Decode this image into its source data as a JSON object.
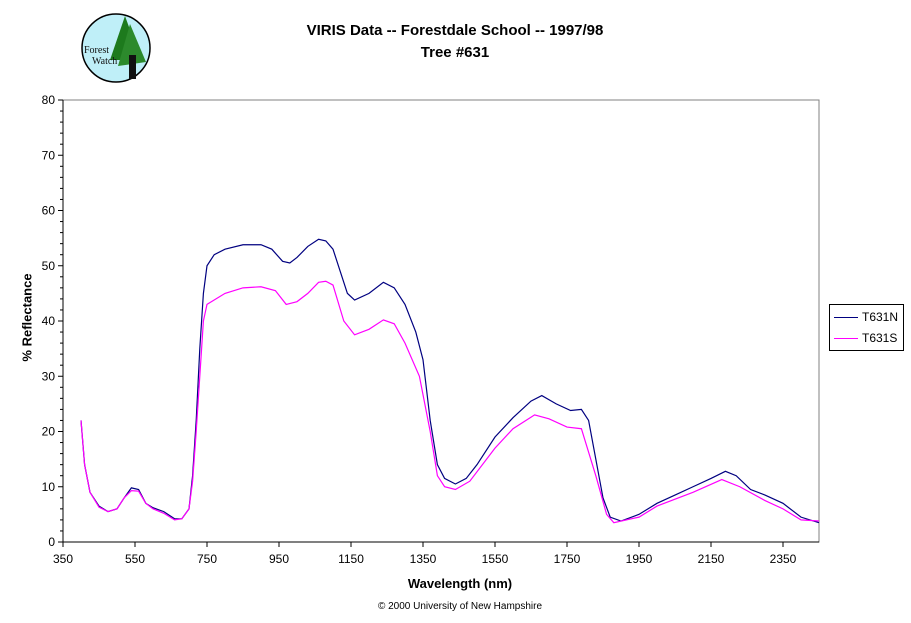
{
  "logo": {
    "text": "Forest Watch"
  },
  "chart_data": {
    "type": "line",
    "title": "VIRIS Data -- Forestdale School -- 1997/98",
    "subtitle": "Tree #631",
    "xlabel": "Wavelength (nm)",
    "ylabel": "% Reflectance",
    "xlim": [
      350,
      2450
    ],
    "ylim": [
      0,
      80
    ],
    "xticks": [
      350,
      550,
      750,
      950,
      1150,
      1350,
      1550,
      1750,
      1950,
      2150,
      2350
    ],
    "yticks": [
      0,
      10,
      20,
      30,
      40,
      50,
      60,
      70,
      80
    ],
    "grid": false,
    "legend_position": "right",
    "footer": "© 2000 University of New Hampshire",
    "series": [
      {
        "name": "T631N",
        "color": "#000080",
        "points": [
          [
            400,
            22
          ],
          [
            410,
            14
          ],
          [
            425,
            9
          ],
          [
            450,
            6.5
          ],
          [
            475,
            5.5
          ],
          [
            500,
            6
          ],
          [
            520,
            8
          ],
          [
            540,
            9.8
          ],
          [
            560,
            9.5
          ],
          [
            580,
            7
          ],
          [
            600,
            6.2
          ],
          [
            630,
            5.5
          ],
          [
            660,
            4.2
          ],
          [
            680,
            4.2
          ],
          [
            700,
            6
          ],
          [
            710,
            12
          ],
          [
            720,
            22
          ],
          [
            730,
            35
          ],
          [
            740,
            45
          ],
          [
            750,
            50
          ],
          [
            770,
            52
          ],
          [
            800,
            53
          ],
          [
            850,
            53.8
          ],
          [
            900,
            53.8
          ],
          [
            930,
            53
          ],
          [
            960,
            50.8
          ],
          [
            980,
            50.5
          ],
          [
            1000,
            51.5
          ],
          [
            1030,
            53.5
          ],
          [
            1060,
            54.8
          ],
          [
            1080,
            54.5
          ],
          [
            1100,
            53
          ],
          [
            1120,
            49
          ],
          [
            1140,
            45
          ],
          [
            1160,
            43.8
          ],
          [
            1200,
            45
          ],
          [
            1240,
            47
          ],
          [
            1270,
            46
          ],
          [
            1300,
            43
          ],
          [
            1330,
            38
          ],
          [
            1350,
            33
          ],
          [
            1370,
            22
          ],
          [
            1390,
            14
          ],
          [
            1410,
            11.5
          ],
          [
            1440,
            10.5
          ],
          [
            1470,
            11.5
          ],
          [
            1500,
            14
          ],
          [
            1550,
            19
          ],
          [
            1600,
            22.5
          ],
          [
            1650,
            25.5
          ],
          [
            1680,
            26.5
          ],
          [
            1720,
            25
          ],
          [
            1760,
            23.8
          ],
          [
            1790,
            24
          ],
          [
            1810,
            22
          ],
          [
            1830,
            15
          ],
          [
            1850,
            8
          ],
          [
            1870,
            4.5
          ],
          [
            1900,
            3.8
          ],
          [
            1950,
            5
          ],
          [
            2000,
            7
          ],
          [
            2050,
            8.5
          ],
          [
            2100,
            10
          ],
          [
            2150,
            11.5
          ],
          [
            2190,
            12.8
          ],
          [
            2220,
            12
          ],
          [
            2260,
            9.5
          ],
          [
            2300,
            8.5
          ],
          [
            2350,
            7
          ],
          [
            2400,
            4.5
          ],
          [
            2450,
            3.5
          ]
        ]
      },
      {
        "name": "T631S",
        "color": "#FF00FF",
        "points": [
          [
            400,
            22
          ],
          [
            410,
            14
          ],
          [
            425,
            9
          ],
          [
            450,
            6.3
          ],
          [
            475,
            5.5
          ],
          [
            500,
            6
          ],
          [
            520,
            8
          ],
          [
            540,
            9.3
          ],
          [
            560,
            9.2
          ],
          [
            580,
            7
          ],
          [
            600,
            6
          ],
          [
            630,
            5.2
          ],
          [
            660,
            4
          ],
          [
            680,
            4.2
          ],
          [
            700,
            6
          ],
          [
            710,
            11
          ],
          [
            720,
            20
          ],
          [
            730,
            30
          ],
          [
            740,
            40
          ],
          [
            750,
            43
          ],
          [
            800,
            45
          ],
          [
            850,
            46
          ],
          [
            900,
            46.2
          ],
          [
            940,
            45.5
          ],
          [
            970,
            43
          ],
          [
            1000,
            43.5
          ],
          [
            1030,
            45
          ],
          [
            1060,
            47
          ],
          [
            1080,
            47.2
          ],
          [
            1100,
            46.5
          ],
          [
            1130,
            40
          ],
          [
            1160,
            37.5
          ],
          [
            1200,
            38.5
          ],
          [
            1240,
            40.2
          ],
          [
            1270,
            39.5
          ],
          [
            1300,
            36
          ],
          [
            1340,
            30
          ],
          [
            1370,
            20
          ],
          [
            1390,
            12
          ],
          [
            1410,
            10
          ],
          [
            1440,
            9.5
          ],
          [
            1480,
            11
          ],
          [
            1550,
            17
          ],
          [
            1600,
            20.5
          ],
          [
            1660,
            23
          ],
          [
            1700,
            22.3
          ],
          [
            1750,
            20.8
          ],
          [
            1790,
            20.5
          ],
          [
            1830,
            12
          ],
          [
            1860,
            5
          ],
          [
            1880,
            3.5
          ],
          [
            1950,
            4.5
          ],
          [
            2000,
            6.5
          ],
          [
            2100,
            9
          ],
          [
            2180,
            11.3
          ],
          [
            2230,
            10
          ],
          [
            2300,
            7.5
          ],
          [
            2350,
            6
          ],
          [
            2400,
            4
          ],
          [
            2450,
            3.8
          ]
        ]
      }
    ]
  }
}
